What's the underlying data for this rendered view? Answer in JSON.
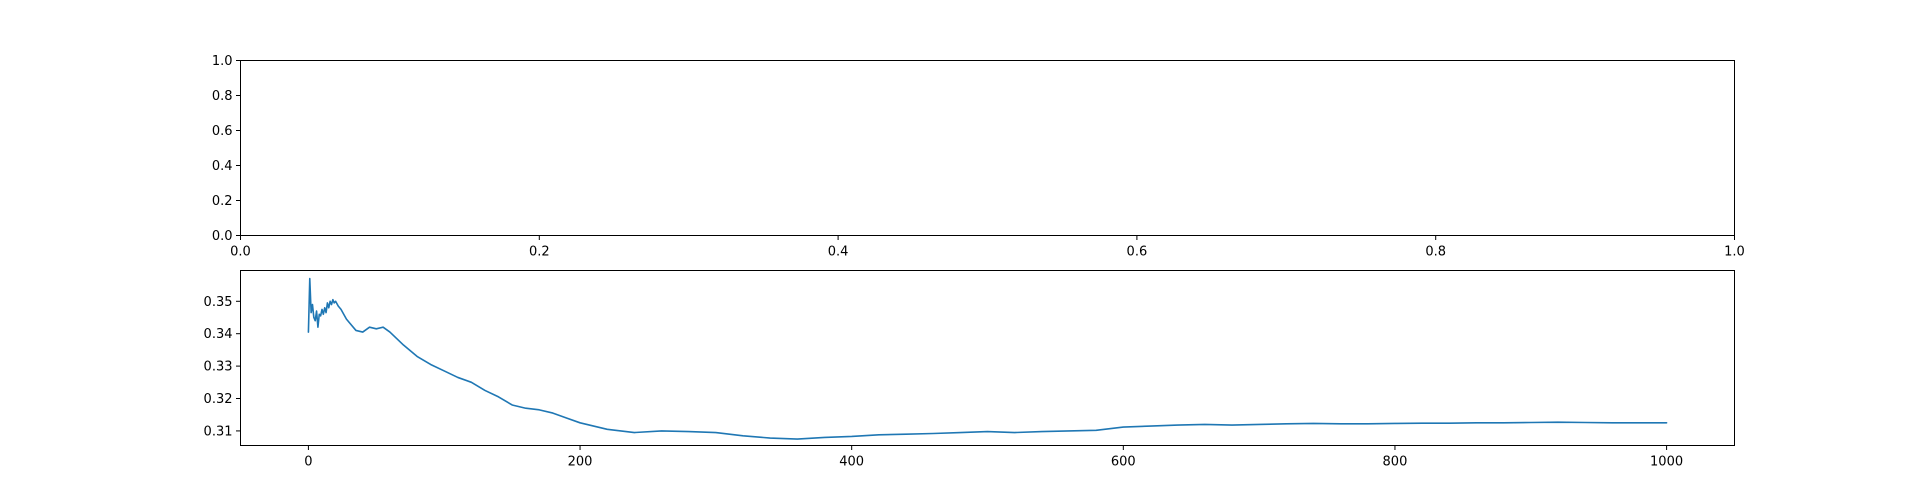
{
  "chart_data": [
    {
      "type": "line",
      "title": "",
      "xlabel": "",
      "ylabel": "",
      "xlim": [
        0.0,
        1.0
      ],
      "ylim": [
        0.0,
        1.0
      ],
      "xticks": [
        "0.0",
        "0.2",
        "0.4",
        "0.6",
        "0.8",
        "1.0"
      ],
      "yticks": [
        "0.0",
        "0.2",
        "0.4",
        "0.6",
        "0.8",
        "1.0"
      ],
      "grid": false,
      "series": []
    },
    {
      "type": "line",
      "title": "",
      "xlabel": "",
      "ylabel": "",
      "xlim": [
        -50,
        1050
      ],
      "ylim": [
        0.3055,
        0.3595
      ],
      "xticks": [
        "0",
        "200",
        "400",
        "600",
        "800",
        "1000"
      ],
      "yticks": [
        "0.31",
        "0.32",
        "0.33",
        "0.34",
        "0.35"
      ],
      "grid": false,
      "color": "#1f77b4",
      "series": [
        {
          "x": [
            0,
            1,
            2,
            3,
            4,
            5,
            6,
            7,
            8,
            9,
            10,
            11,
            12,
            13,
            14,
            15,
            16,
            17,
            18,
            19,
            20,
            22,
            24,
            26,
            28,
            30,
            35,
            40,
            45,
            50,
            55,
            60,
            65,
            70,
            80,
            90,
            100,
            110,
            120,
            130,
            140,
            150,
            160,
            170,
            180,
            190,
            200,
            220,
            240,
            260,
            280,
            300,
            320,
            340,
            360,
            380,
            400,
            420,
            440,
            460,
            480,
            500,
            520,
            540,
            560,
            580,
            600,
            620,
            640,
            660,
            680,
            700,
            720,
            740,
            760,
            780,
            800,
            820,
            840,
            860,
            880,
            900,
            920,
            940,
            960,
            980,
            1000
          ],
          "y": [
            0.3405,
            0.357,
            0.3465,
            0.349,
            0.345,
            0.344,
            0.347,
            0.342,
            0.346,
            0.3455,
            0.3475,
            0.346,
            0.348,
            0.3465,
            0.3495,
            0.348,
            0.35,
            0.349,
            0.3505,
            0.3495,
            0.35,
            0.3485,
            0.3475,
            0.346,
            0.3445,
            0.3435,
            0.341,
            0.3405,
            0.342,
            0.3415,
            0.342,
            0.3405,
            0.3385,
            0.3365,
            0.333,
            0.3305,
            0.3285,
            0.3265,
            0.325,
            0.3225,
            0.3205,
            0.318,
            0.317,
            0.3165,
            0.3155,
            0.314,
            0.3125,
            0.3105,
            0.3095,
            0.31,
            0.3098,
            0.3095,
            0.3085,
            0.3078,
            0.3075,
            0.308,
            0.3083,
            0.3088,
            0.309,
            0.3092,
            0.3095,
            0.3098,
            0.3095,
            0.3098,
            0.31,
            0.3102,
            0.3112,
            0.3115,
            0.3118,
            0.312,
            0.3118,
            0.312,
            0.3122,
            0.3123,
            0.3122,
            0.3122,
            0.3123,
            0.3124,
            0.3124,
            0.3125,
            0.3125,
            0.3126,
            0.3127,
            0.3126,
            0.3125,
            0.3125,
            0.3125
          ]
        }
      ]
    }
  ]
}
